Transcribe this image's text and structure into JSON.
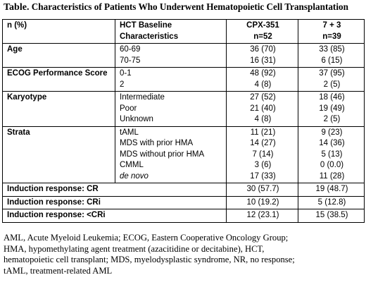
{
  "title": {
    "lead": "Table.",
    "text": " Characteristics of Patients Who Underwent Hematopoietic Cell Transplantation"
  },
  "header": {
    "col1": "n (%)",
    "col2": [
      "HCT Baseline",
      "Characteristics"
    ],
    "col3": [
      "CPX-351",
      "n=52"
    ],
    "col4": [
      "7 + 3",
      "n=39"
    ]
  },
  "rows": [
    {
      "label": "Age",
      "items": [
        {
          "name": "60-69",
          "cpx": "36 (70)",
          "std": "33 (85)"
        },
        {
          "name": "70-75",
          "cpx": "16 (31)",
          "std": "6 (15)"
        }
      ]
    },
    {
      "label": "ECOG Performance Score",
      "items": [
        {
          "name": "0-1",
          "cpx": "48 (92)",
          "std": "37 (95)"
        },
        {
          "name": "2",
          "cpx": "4 (8)",
          "std": "2 (5)"
        }
      ]
    },
    {
      "label": "Karyotype",
      "items": [
        {
          "name": "Intermediate",
          "cpx": "27 (52)",
          "std": "18 (46)"
        },
        {
          "name": "Poor",
          "cpx": "21 (40)",
          "std": "19 (49)"
        },
        {
          "name": "Unknown",
          "cpx": "4 (8)",
          "std": "2 (5)"
        }
      ]
    },
    {
      "label": "Strata",
      "items": [
        {
          "name": "tAML",
          "cpx": "11 (21)",
          "std": "9 (23)"
        },
        {
          "name": "MDS with prior HMA",
          "cpx": "14 (27)",
          "std": "14 (36)"
        },
        {
          "name": "MDS without prior HMA",
          "cpx": "7 (14)",
          "std": "5 (13)"
        },
        {
          "name": "CMML",
          "cpx": "3 (6)",
          "std": "0 (0.0)"
        },
        {
          "name": "de novo",
          "cpx": "17 (33)",
          "std": "11 (28)"
        }
      ]
    }
  ],
  "responses": [
    {
      "label": "Induction response: CR",
      "cpx": "30 (57.7)",
      "std": "19 (48.7)"
    },
    {
      "label": "Induction response: CRi",
      "cpx": "10 (19.2)",
      "std": "5 (12.8)"
    },
    {
      "label": "Induction response: <CRi",
      "cpx": "12 (23.1)",
      "std": "15 (38.5)"
    }
  ],
  "footnote": [
    "AML, Acute Myeloid Leukemia; ECOG, Eastern Cooperative Oncology Group;",
    "HMA, hypomethylating agent treatment (azacitidine or decitabine), HCT,",
    "hematopoietic cell transplant; MDS, myelodysplastic syndrome, NR, no response;",
    "tAML, treatment-related AML"
  ]
}
